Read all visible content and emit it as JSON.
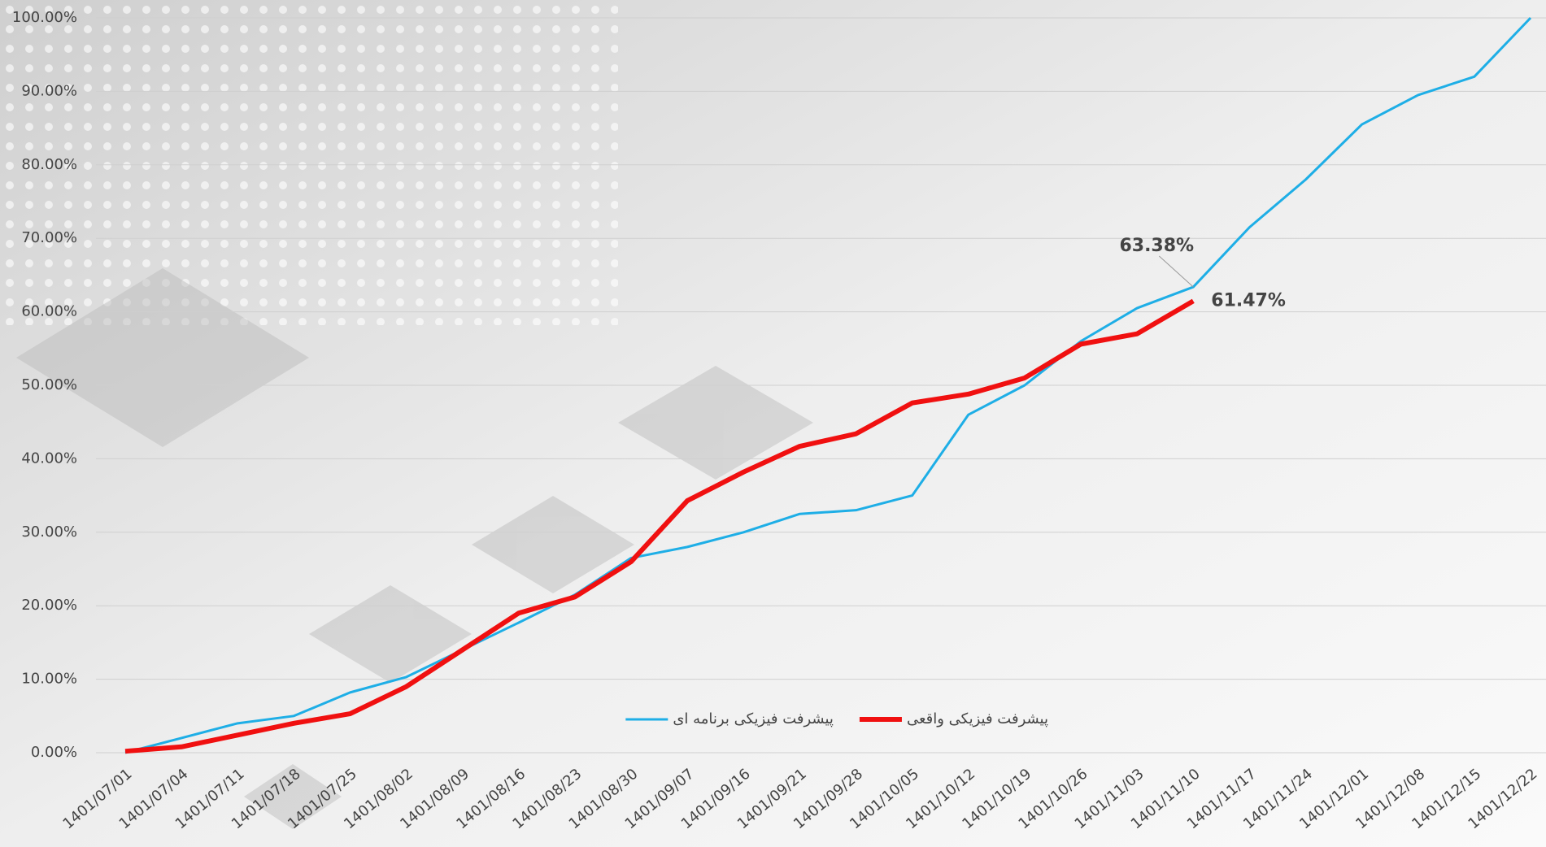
{
  "chart_data": {
    "type": "line",
    "categories": [
      "1401/07/01",
      "1401/07/04",
      "1401/07/11",
      "1401/07/18",
      "1401/07/25",
      "1401/08/02",
      "1401/08/09",
      "1401/08/16",
      "1401/08/23",
      "1401/08/30",
      "1401/09/07",
      "1401/09/16",
      "1401/09/21",
      "1401/09/28",
      "1401/10/05",
      "1401/10/12",
      "1401/10/19",
      "1401/10/26",
      "1401/11/03",
      "1401/11/10",
      "1401/11/17",
      "1401/11/24",
      "1401/12/01",
      "1401/12/08",
      "1401/12/15",
      "1401/12/22"
    ],
    "series": [
      {
        "name": "پیشرفت فیزیکی برنامه ای",
        "color": "#1eaee6",
        "width": 3,
        "values": [
          0,
          2,
          4,
          5,
          8.2,
          10.3,
          14,
          17.7,
          21.5,
          26.5,
          28,
          30,
          32.5,
          33,
          35,
          46,
          50,
          56,
          60.5,
          63.38,
          71.5,
          78,
          85.5,
          89.5,
          92,
          100
        ],
        "value_labels": [
          null,
          null,
          null,
          null,
          null,
          null,
          null,
          null,
          null,
          null,
          null,
          null,
          null,
          null,
          null,
          null,
          null,
          null,
          null,
          "63.38%",
          null,
          null,
          null,
          null,
          null,
          null
        ]
      },
      {
        "name": "پیشرفت فیزیکی واقعی",
        "color": "#f01010",
        "width": 6,
        "values": [
          0.2,
          0.8,
          2.4,
          4,
          5.3,
          9,
          14,
          19,
          21.2,
          26,
          34.3,
          38.2,
          41.7,
          43.4,
          47.6,
          48.8,
          51,
          55.6,
          57,
          61.47,
          null,
          null,
          null,
          null,
          null,
          null
        ],
        "value_labels": [
          null,
          null,
          null,
          null,
          null,
          null,
          null,
          null,
          null,
          null,
          null,
          null,
          null,
          null,
          null,
          null,
          null,
          null,
          null,
          "61.47%",
          null,
          null,
          null,
          null,
          null,
          null
        ]
      }
    ],
    "ylim": [
      0,
      100
    ],
    "yticks": [
      {
        "value": 0,
        "label": "0.00%"
      },
      {
        "value": 10,
        "label": "10.00%"
      },
      {
        "value": 20,
        "label": "20.00%"
      },
      {
        "value": 30,
        "label": "30.00%"
      },
      {
        "value": 40,
        "label": "40.00%"
      },
      {
        "value": 50,
        "label": "50.00%"
      },
      {
        "value": 60,
        "label": "60.00%"
      },
      {
        "value": 70,
        "label": "70.00%"
      },
      {
        "value": 80,
        "label": "80.00%"
      },
      {
        "value": 90,
        "label": "90.00%"
      },
      {
        "value": 100,
        "label": "100.00%"
      }
    ],
    "grid": true,
    "legend": "bottom"
  }
}
